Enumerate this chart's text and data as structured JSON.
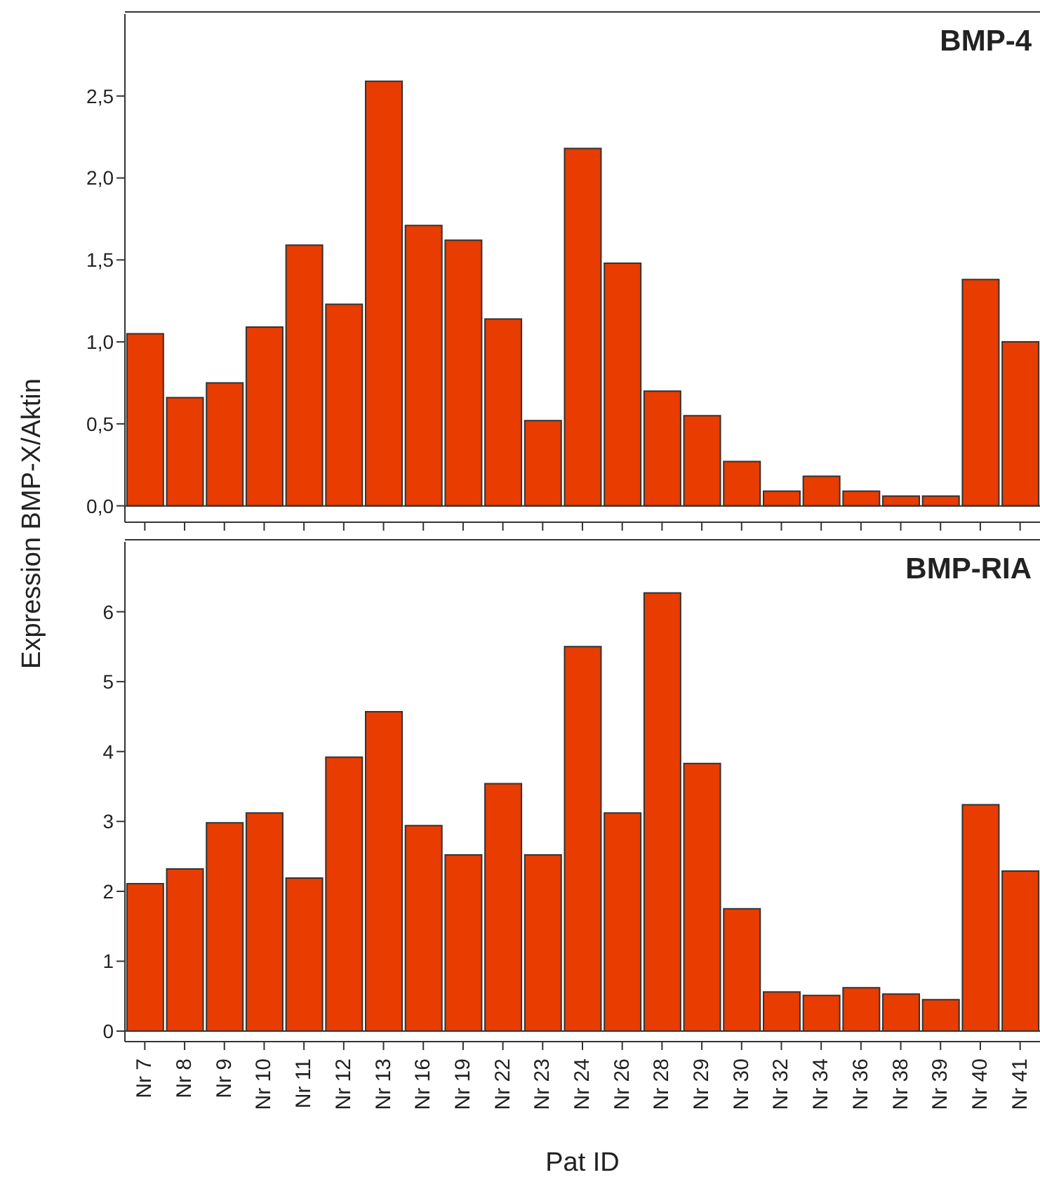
{
  "chart_data": [
    {
      "type": "bar",
      "title": "BMP-4",
      "ylabel": "Expression BMP-X/Aktin",
      "values": [
        1.05,
        0.66,
        0.75,
        1.09,
        1.59,
        1.23,
        2.59,
        1.71,
        1.62,
        1.14,
        0.52,
        2.18,
        1.48,
        0.7,
        0.55,
        0.27,
        0.09,
        0.18,
        0.09,
        0.06,
        0.06,
        1.38,
        1.0
      ],
      "color": "#e83c00",
      "ylim": [
        -0.1,
        3.0
      ],
      "yticks": [
        {
          "value": 0,
          "label": "0,0"
        },
        {
          "value": 0.5,
          "label": "0,5"
        },
        {
          "value": 1,
          "label": "1,0"
        },
        {
          "value": 1.5,
          "label": "1,5"
        },
        {
          "value": 2,
          "label": "2,0"
        },
        {
          "value": 2.5,
          "label": "2,5"
        }
      ],
      "tick_labels": "y",
      "legend": false
    },
    {
      "type": "bar",
      "title": "BMP-RIA",
      "xlabel": "Pat ID",
      "categories": [
        "Nr 7",
        "Nr 8",
        "Nr 9",
        "Nr 10",
        "Nr 11",
        "Nr 12",
        "Nr 13",
        "Nr 16",
        "Nr 19",
        "Nr 22",
        "Nr 23",
        "Nr 24",
        "Nr 26",
        "Nr 28",
        "Nr 29",
        "Nr 30",
        "Nr 32",
        "Nr 34",
        "Nr 36",
        "Nr 38",
        "Nr 39",
        "Nr 40",
        "Nr 41"
      ],
      "values": [
        2.11,
        2.32,
        2.98,
        3.12,
        2.19,
        3.92,
        4.57,
        2.94,
        2.52,
        3.54,
        2.52,
        5.5,
        3.12,
        6.27,
        3.83,
        1.75,
        0.56,
        0.51,
        0.62,
        0.53,
        0.45,
        3.24,
        2.29
      ],
      "color": "#e83c00",
      "ylim": [
        -0.15,
        7
      ],
      "yticks": [
        0,
        1,
        2,
        3,
        4,
        5,
        6
      ],
      "legend": false
    }
  ]
}
